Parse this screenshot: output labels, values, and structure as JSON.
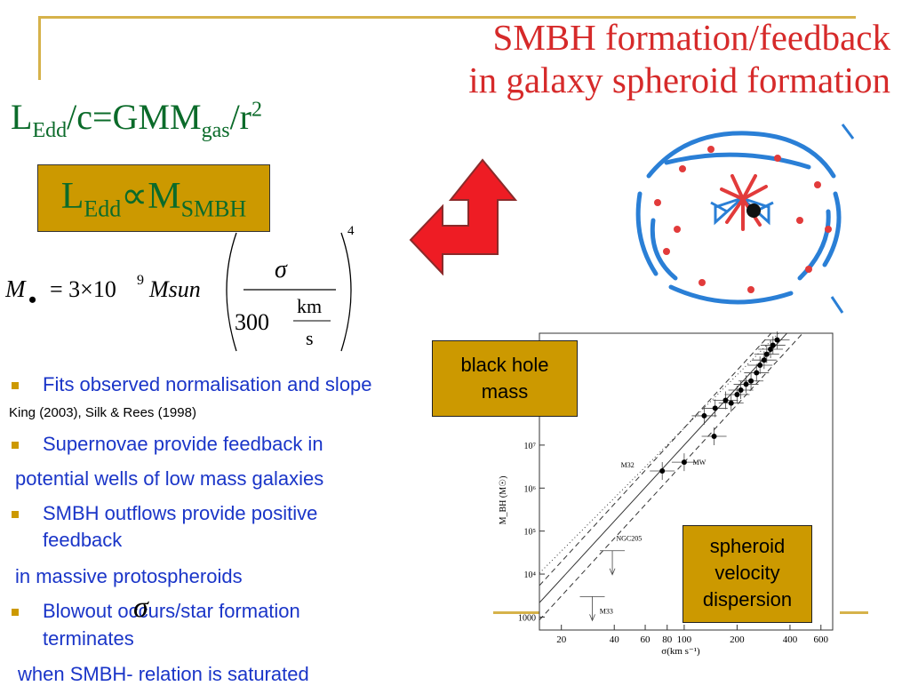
{
  "title": {
    "line1": "SMBH formation/feedback",
    "line2": "in galaxy spheroid formation"
  },
  "formula_eddington": {
    "main": "L",
    "sub1": "Edd",
    "mid": "/c=GMM",
    "sub2": "gas",
    "tail": "/r",
    "sup": "2"
  },
  "box_proportional": {
    "L": "L",
    "sub1": "Edd",
    "prop": "∝M",
    "sub2": "SMBH"
  },
  "mass_formula": {
    "lhs": "M",
    "bullet": "•",
    "equals": "= 3×10",
    "exp": "9",
    "unit": "Msun",
    "numerator": "σ",
    "denominator": "300",
    "unit_num": "km",
    "unit_den": "s",
    "power": "4"
  },
  "bullets": {
    "b1": "Fits observed normalisation and slope",
    "ref": "King (2003), Silk & Rees (1998)",
    "b2": "Supernovae provide feedback in",
    "b2_cont": "potential wells of low mass galaxies",
    "b3a": "SMBH outflows provide positive",
    "b3b": "feedback",
    "b3_cont": "in massive protospheroids",
    "b4a": "Blowout occurs/star formation",
    "b4b": "terminates",
    "b4_cont": "when SMBH-     relation is saturated",
    "sigma_symbol": "σ"
  },
  "labels": {
    "black_hole_1": "black hole",
    "black_hole_2": "mass",
    "spheroid_1": "spheroid",
    "spheroid_2": "velocity",
    "spheroid_3": "dispersion"
  },
  "chart_data": {
    "type": "scatter",
    "xlabel": "σ(km s⁻¹)",
    "ylabel": "M_BH (M☉)",
    "x_scale": "log",
    "y_scale": "log",
    "xticks": [
      "20",
      "40",
      "60",
      "80",
      "100",
      "200",
      "400",
      "600"
    ],
    "yticks": [
      "1000",
      "10⁴",
      "10⁵",
      "10⁶",
      "10⁷"
    ],
    "annotations": [
      "M32",
      "MW",
      "NGC205",
      "M33"
    ],
    "points": [
      {
        "x": 75,
        "y": 2500000
      },
      {
        "x": 100,
        "y": 4000000
      },
      {
        "x": 148,
        "y": 16000000
      },
      {
        "x": 130,
        "y": 48000000
      },
      {
        "x": 150,
        "y": 72000000
      },
      {
        "x": 172,
        "y": 110000000
      },
      {
        "x": 185,
        "y": 95000000
      },
      {
        "x": 200,
        "y": 150000000
      },
      {
        "x": 210,
        "y": 190000000
      },
      {
        "x": 225,
        "y": 260000000
      },
      {
        "x": 240,
        "y": 310000000
      },
      {
        "x": 258,
        "y": 480000000
      },
      {
        "x": 270,
        "y": 720000000
      },
      {
        "x": 285,
        "y": 950000000
      },
      {
        "x": 295,
        "y": 1300000000
      },
      {
        "x": 310,
        "y": 1700000000
      },
      {
        "x": 320,
        "y": 2100000000
      },
      {
        "x": 338,
        "y": 2800000000
      }
    ],
    "upper_limits": [
      {
        "x": 39,
        "y": 35000
      },
      {
        "x": 30,
        "y": 3000
      }
    ]
  }
}
